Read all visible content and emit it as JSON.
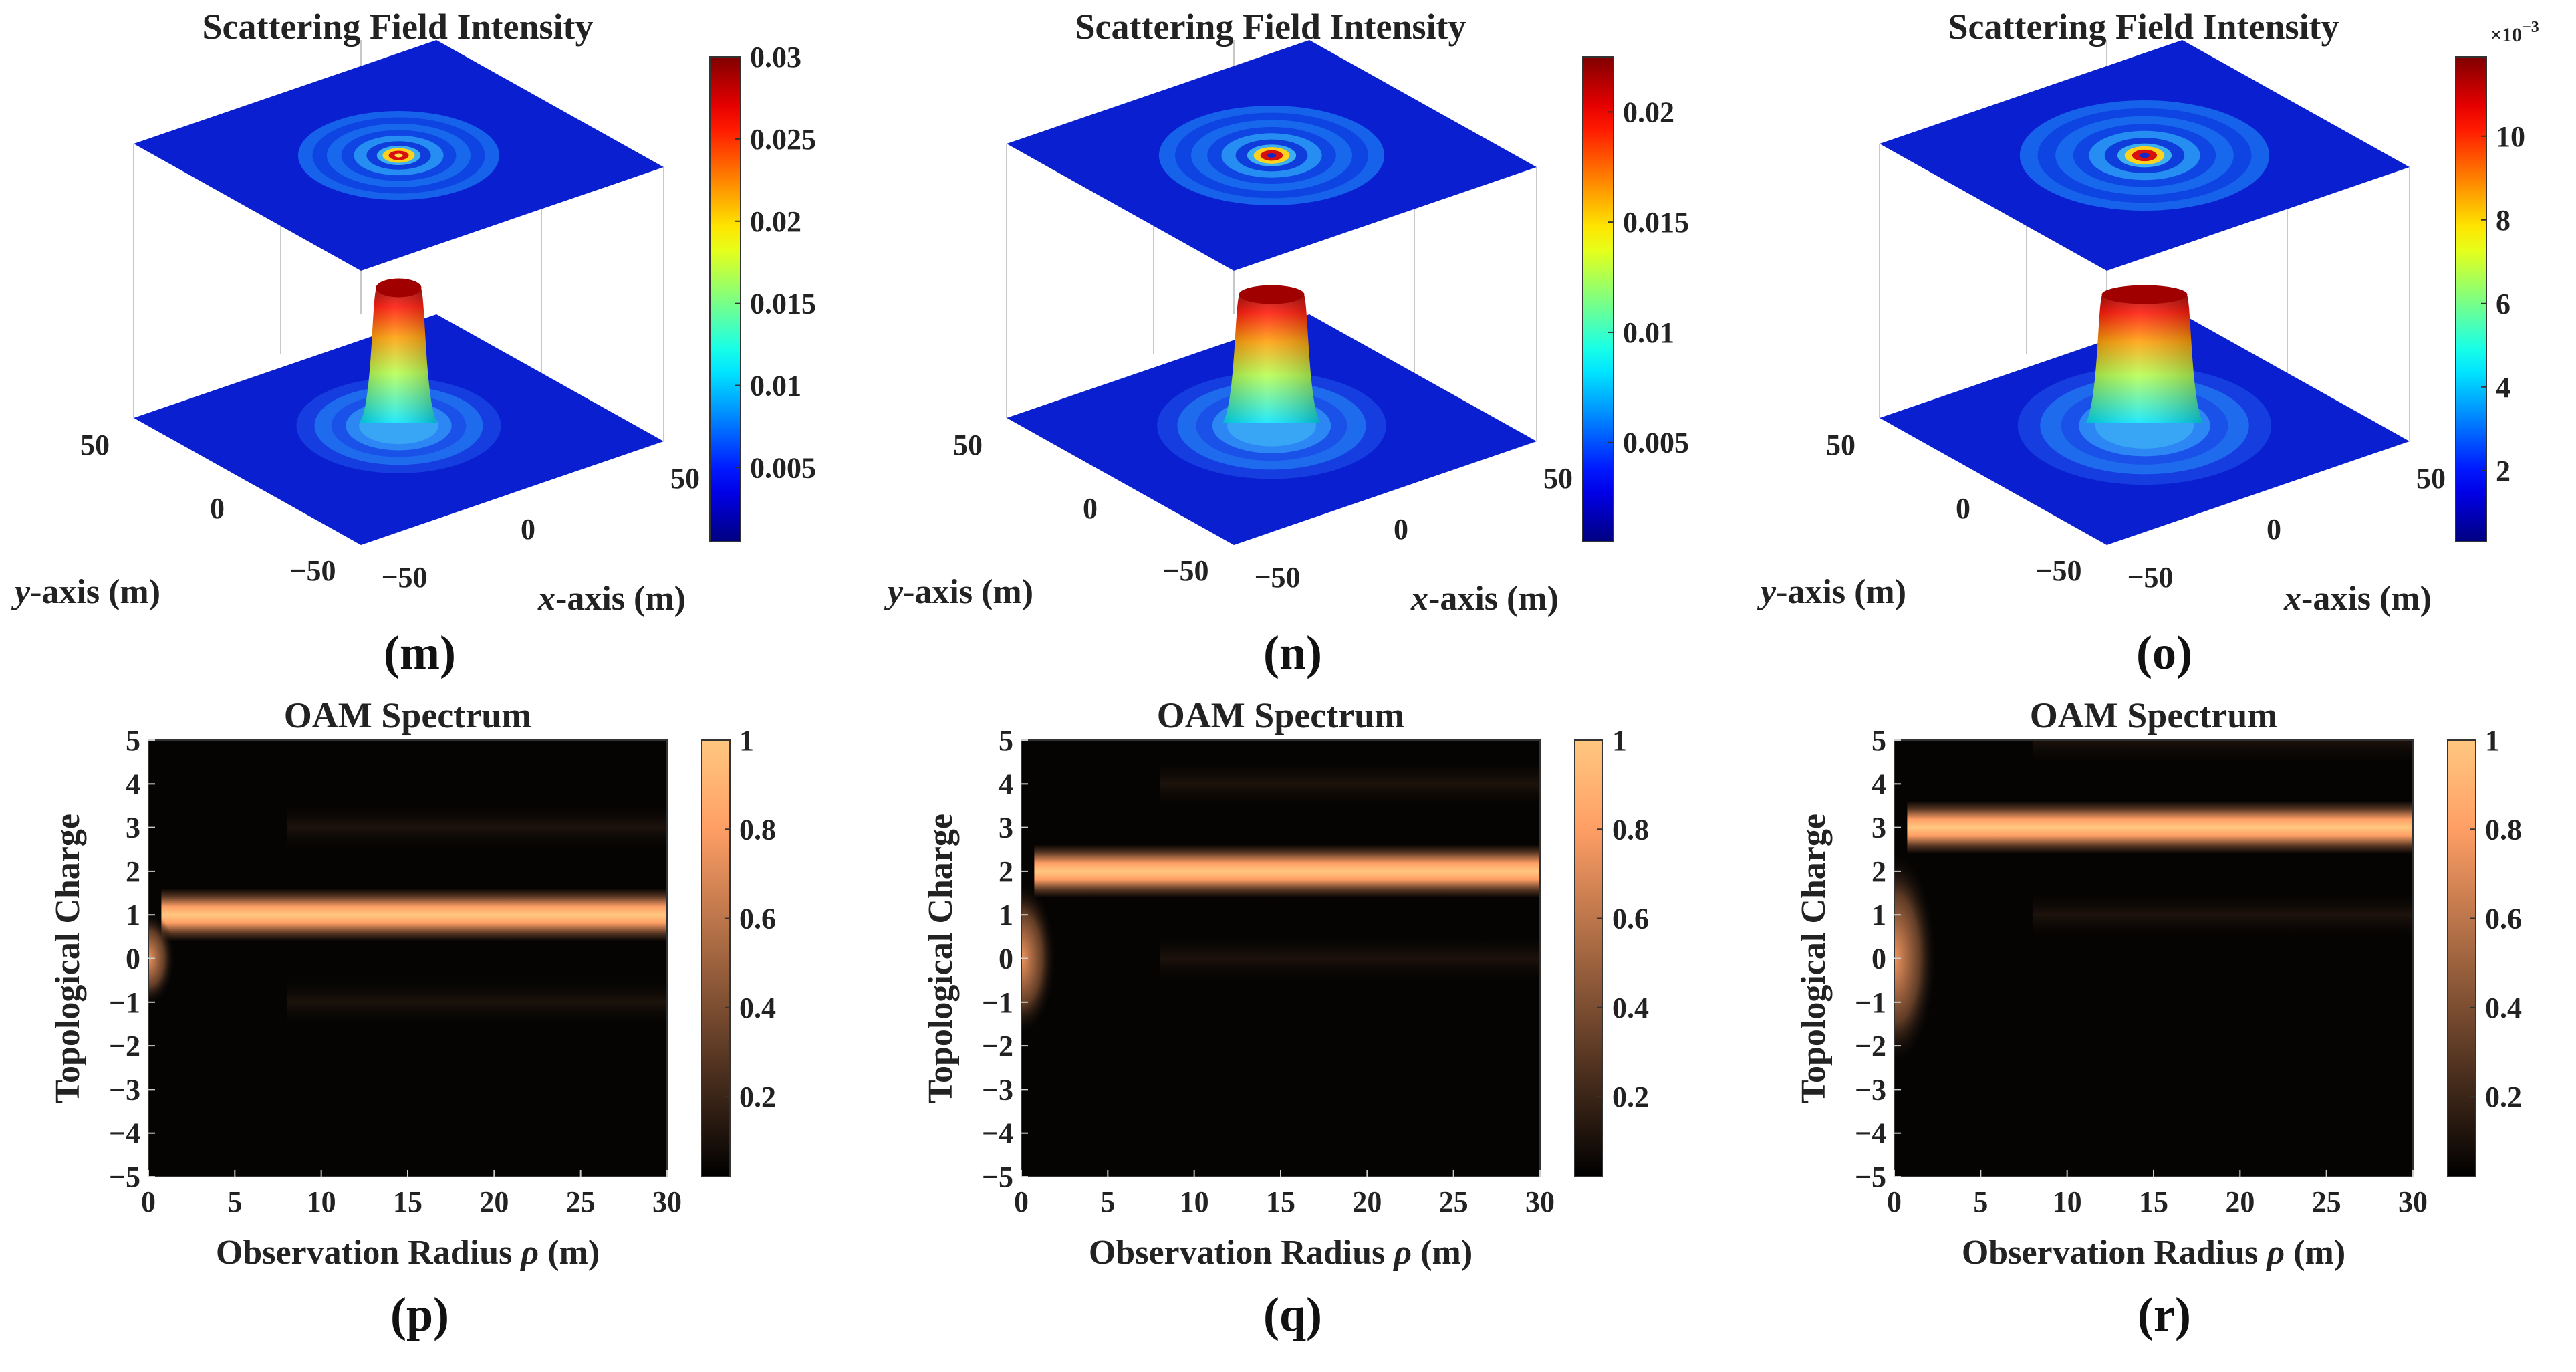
{
  "panel_labels": [
    "(m)",
    "(n)",
    "(o)",
    "(p)",
    "(q)",
    "(r)"
  ],
  "colors": {
    "text": "#222222",
    "axis": "#333333",
    "jet_floor": "#0a1fd0",
    "copper_bg": "#050403"
  },
  "chart_data": [
    {
      "id": "m",
      "type": "surface3d",
      "title": "Scattering Field Intensity",
      "xlabel_italic": "x",
      "xlabel_rest": "-axis (m)",
      "ylabel_italic": "y",
      "ylabel_rest": "-axis (m)",
      "x_ticks": [
        "−50",
        "0",
        "50"
      ],
      "y_ticks": [
        "50",
        "0",
        "−50"
      ],
      "xlim": [
        -50,
        50
      ],
      "ylim": [
        -50,
        50
      ],
      "zlim": [
        0,
        0.03
      ],
      "peak_value": 0.03,
      "peak_radius_m": 5,
      "dip_fraction": 0,
      "colormap": "jet",
      "colorbar_ticks": [
        {
          "value": 0.005,
          "label": "0.005"
        },
        {
          "value": 0.01,
          "label": "0.01"
        },
        {
          "value": 0.015,
          "label": "0.015"
        },
        {
          "value": 0.02,
          "label": "0.02"
        },
        {
          "value": 0.025,
          "label": "0.025"
        },
        {
          "value": 0.03,
          "label": "0.03"
        }
      ],
      "colorbar_range": [
        0.0005,
        0.03
      ],
      "colorbar_exponent": ""
    },
    {
      "id": "n",
      "type": "surface3d",
      "title": "Scattering Field Intensity",
      "xlabel_italic": "x",
      "xlabel_rest": "-axis (m)",
      "ylabel_italic": "y",
      "ylabel_rest": "-axis (m)",
      "x_ticks": [
        "−50",
        "0",
        "50"
      ],
      "y_ticks": [
        "50",
        "0",
        "−50"
      ],
      "xlim": [
        -50,
        50
      ],
      "ylim": [
        -50,
        50
      ],
      "zlim": [
        0,
        0.022
      ],
      "peak_value": 0.022,
      "peak_radius_m": 6,
      "dip_fraction": 0.1,
      "colormap": "jet",
      "colorbar_ticks": [
        {
          "value": 0.005,
          "label": "0.005"
        },
        {
          "value": 0.01,
          "label": "0.01"
        },
        {
          "value": 0.015,
          "label": "0.015"
        },
        {
          "value": 0.02,
          "label": "0.02"
        }
      ],
      "colorbar_range": [
        0.0005,
        0.0225
      ],
      "colorbar_exponent": ""
    },
    {
      "id": "o",
      "type": "surface3d",
      "title": "Scattering Field Intensity",
      "xlabel_italic": "x",
      "xlabel_rest": "-axis (m)",
      "ylabel_italic": "y",
      "ylabel_rest": "-axis (m)",
      "x_ticks": [
        "−50",
        "0",
        "50"
      ],
      "y_ticks": [
        "50",
        "0",
        "−50"
      ],
      "xlim": [
        -50,
        50
      ],
      "ylim": [
        -50,
        50
      ],
      "zlim": [
        0,
        0.0118
      ],
      "peak_value": 0.0118,
      "peak_radius_m": 7,
      "dip_fraction": 0.2,
      "colormap": "jet",
      "colorbar_ticks": [
        {
          "value": 2,
          "label": "2"
        },
        {
          "value": 4,
          "label": "4"
        },
        {
          "value": 6,
          "label": "6"
        },
        {
          "value": 8,
          "label": "8"
        },
        {
          "value": 10,
          "label": "10"
        }
      ],
      "colorbar_range": [
        0.3,
        11.9
      ],
      "colorbar_exponent": "×10",
      "colorbar_exponent_power": "−3"
    },
    {
      "id": "p",
      "type": "heatmap",
      "title": "OAM Spectrum",
      "xlabel_pre": "Observation Radius ",
      "xlabel_italic": "ρ",
      "xlabel_post": " (m)",
      "ylabel": "Topological Charge",
      "xlim": [
        0,
        30
      ],
      "ylim": [
        -5,
        5
      ],
      "x_ticks": [
        0,
        5,
        10,
        15,
        20,
        25,
        30
      ],
      "y_ticks": [
        5,
        4,
        3,
        2,
        1,
        0,
        -1,
        -2,
        -3,
        -4,
        -5
      ],
      "dominant_charge": 1,
      "low_radius_charge": 0,
      "colormap": "copper",
      "colorbar_ticks": [
        {
          "value": 0.2,
          "label": "0.2"
        },
        {
          "value": 0.4,
          "label": "0.4"
        },
        {
          "value": 0.6,
          "label": "0.6"
        },
        {
          "value": 0.8,
          "label": "0.8"
        },
        {
          "value": 1,
          "label": "1"
        }
      ],
      "colorbar_range": [
        0.02,
        1.0
      ]
    },
    {
      "id": "q",
      "type": "heatmap",
      "title": "OAM Spectrum",
      "xlabel_pre": "Observation Radius ",
      "xlabel_italic": "ρ",
      "xlabel_post": " (m)",
      "ylabel": "Topological Charge",
      "xlim": [
        0,
        30
      ],
      "ylim": [
        -5,
        5
      ],
      "x_ticks": [
        0,
        5,
        10,
        15,
        20,
        25,
        30
      ],
      "y_ticks": [
        5,
        4,
        3,
        2,
        1,
        0,
        -1,
        -2,
        -3,
        -4,
        -5
      ],
      "dominant_charge": 2,
      "low_radius_charge": 0,
      "colormap": "copper",
      "colorbar_ticks": [
        {
          "value": 0.2,
          "label": "0.2"
        },
        {
          "value": 0.4,
          "label": "0.4"
        },
        {
          "value": 0.6,
          "label": "0.6"
        },
        {
          "value": 0.8,
          "label": "0.8"
        },
        {
          "value": 1,
          "label": "1"
        }
      ],
      "colorbar_range": [
        0.02,
        1.0
      ]
    },
    {
      "id": "r",
      "type": "heatmap",
      "title": "OAM Spectrum",
      "xlabel_pre": "Observation Radius ",
      "xlabel_italic": "ρ",
      "xlabel_post": " (m)",
      "ylabel": "Topological Charge",
      "xlim": [
        0,
        30
      ],
      "ylim": [
        -5,
        5
      ],
      "x_ticks": [
        0,
        5,
        10,
        15,
        20,
        25,
        30
      ],
      "y_ticks": [
        5,
        4,
        3,
        2,
        1,
        0,
        -1,
        -2,
        -3,
        -4,
        -5
      ],
      "dominant_charge": 3,
      "low_radius_charge": 0,
      "colormap": "copper",
      "colorbar_ticks": [
        {
          "value": 0.2,
          "label": "0.2"
        },
        {
          "value": 0.4,
          "label": "0.4"
        },
        {
          "value": 0.6,
          "label": "0.6"
        },
        {
          "value": 0.8,
          "label": "0.8"
        },
        {
          "value": 1,
          "label": "1"
        }
      ],
      "colorbar_range": [
        0.02,
        1.0
      ]
    }
  ]
}
